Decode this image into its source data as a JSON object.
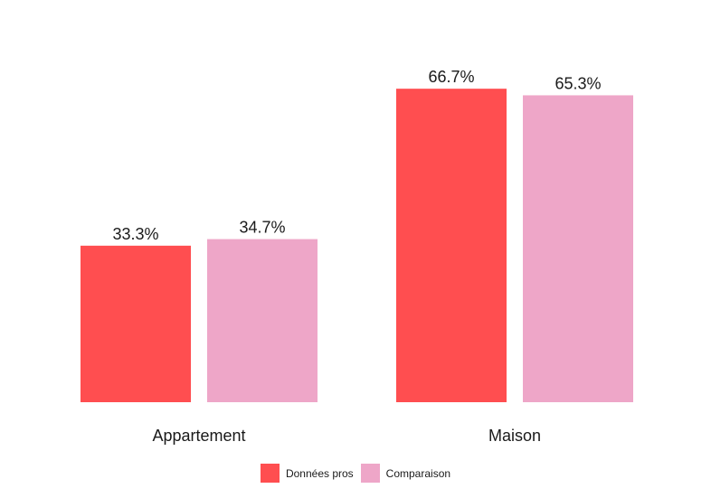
{
  "chart_data": {
    "type": "bar",
    "categories": [
      "Appartement",
      "Maison"
    ],
    "series": [
      {
        "name": "Données pros",
        "values": [
          33.3,
          66.7
        ],
        "color": "#FF4E50"
      },
      {
        "name": "Comparaison",
        "values": [
          34.7,
          65.3
        ],
        "color": "#EEA6C8"
      }
    ],
    "data_labels": [
      [
        "33.3%",
        "66.7%"
      ],
      [
        "34.7%",
        "65.3%"
      ]
    ],
    "ylim": [
      0,
      76
    ],
    "grid": false,
    "legend": "bottom",
    "title": "",
    "xlabel": "",
    "ylabel": ""
  }
}
